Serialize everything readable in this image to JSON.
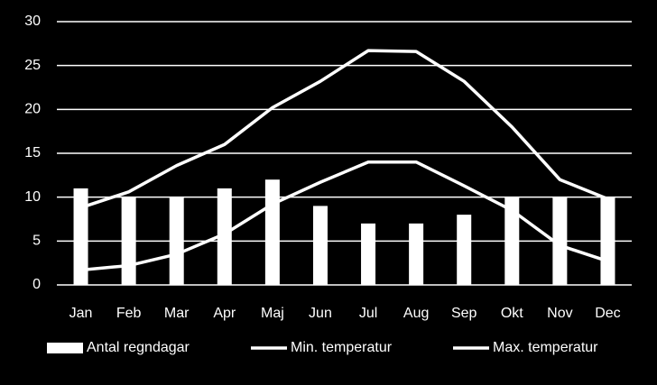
{
  "chart_data": {
    "type": "bar-line",
    "categories": [
      "Jan",
      "Feb",
      "Mar",
      "Apr",
      "Maj",
      "Jun",
      "Jul",
      "Aug",
      "Sep",
      "Okt",
      "Nov",
      "Dec"
    ],
    "series": [
      {
        "name": "Antal regndagar",
        "type": "bar",
        "color": "#ffffff",
        "values": [
          11,
          10,
          10,
          11,
          12,
          9,
          7,
          7,
          8,
          10,
          10,
          10
        ]
      },
      {
        "name": "Min. temperatur",
        "type": "line",
        "color": "#ffffff",
        "values": [
          1.7,
          2.2,
          3.5,
          5.8,
          9.2,
          11.7,
          14,
          14,
          11.3,
          8.5,
          4.5,
          2.7
        ]
      },
      {
        "name": "Max. temperatur",
        "type": "line",
        "color": "#ffffff",
        "values": [
          8.8,
          10.6,
          13.6,
          16,
          20.2,
          23.2,
          26.7,
          26.6,
          23.2,
          18,
          12,
          9.8
        ]
      }
    ],
    "ylim": [
      0,
      30
    ],
    "yticks": [
      0,
      5,
      10,
      15,
      20,
      25,
      30
    ],
    "grid": true,
    "legend": "bottom"
  }
}
